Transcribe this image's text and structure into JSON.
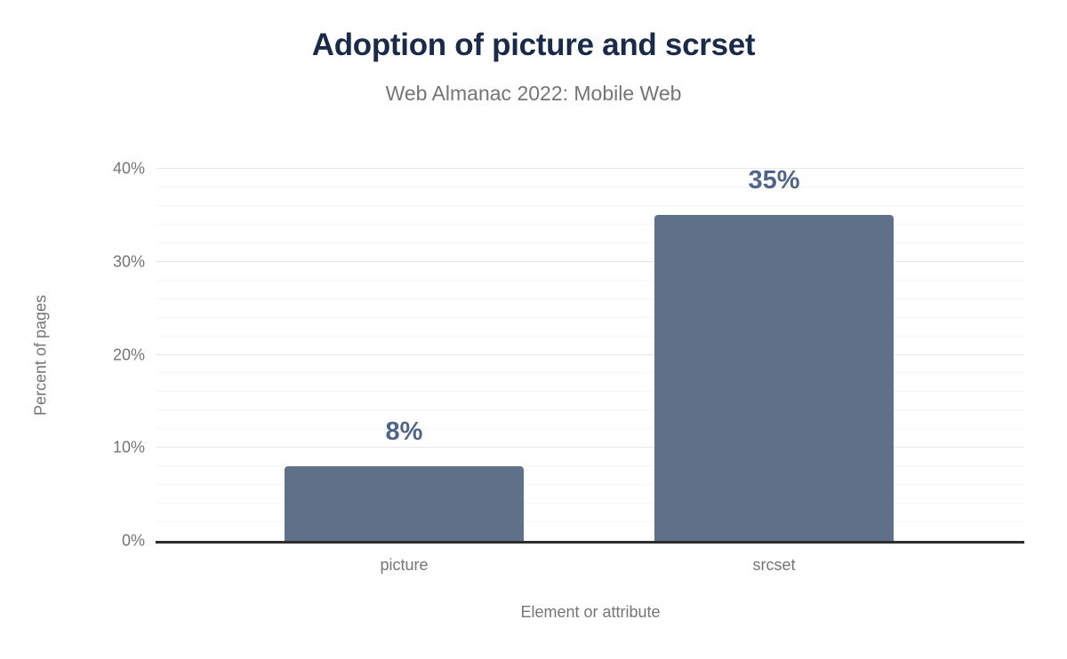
{
  "chart_data": {
    "type": "bar",
    "title": "Adoption of picture and scrset",
    "subtitle": "Web Almanac 2022: Mobile Web",
    "xlabel": "Element or attribute",
    "ylabel": "Percent of pages",
    "categories": [
      "picture",
      "srcset"
    ],
    "values": [
      8,
      35
    ],
    "value_labels": [
      "8%",
      "35%"
    ],
    "ylim": [
      0,
      40
    ],
    "yticks": [
      {
        "value": 0,
        "label": "0%"
      },
      {
        "value": 10,
        "label": "10%"
      },
      {
        "value": 20,
        "label": "20%"
      },
      {
        "value": 30,
        "label": "30%"
      },
      {
        "value": 40,
        "label": "40%"
      }
    ],
    "minor_grid_step": 2,
    "major_grid_step": 10,
    "grid": true,
    "legend": "none",
    "colors": {
      "bar": "#5f7089",
      "value_label": "#51658a",
      "title": "#1a2b49",
      "muted_text": "#757575",
      "axis_line": "#2e2e2e",
      "grid_major": "#e8e8e8",
      "grid_minor": "#f6f6f6",
      "background": "#ffffff"
    }
  }
}
